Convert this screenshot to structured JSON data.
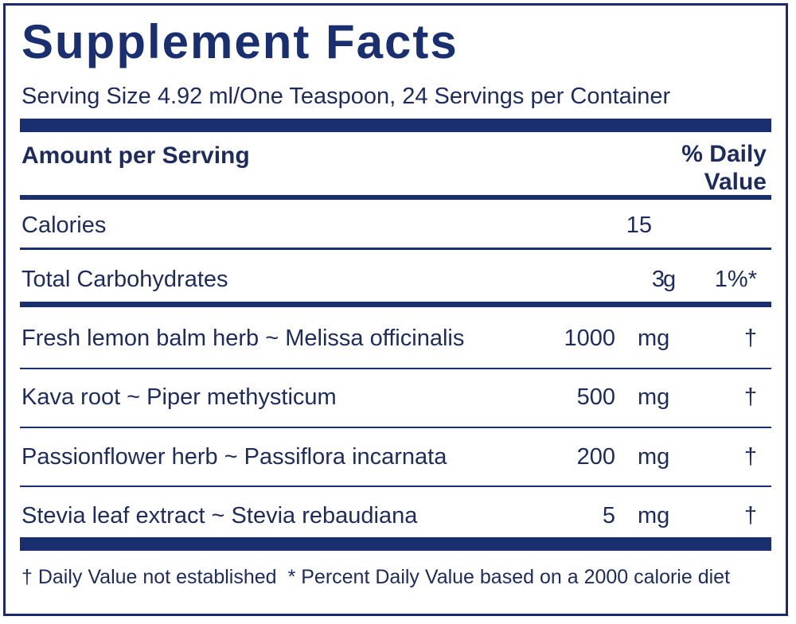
{
  "title": "Supplement Facts",
  "serving": "Serving Size 4.92 ml/One Teaspoon, 24 Servings per Container",
  "header": {
    "amount": "Amount per Serving",
    "daily_value": "% Daily Value"
  },
  "rows": [
    {
      "name": "Calories",
      "amount": "15"
    },
    {
      "name": "Total Carbohydrates",
      "amount": "3",
      "unit": "g",
      "dv": "1%*"
    },
    {
      "name": "Fresh lemon balm herb ~ Melissa officinalis",
      "amount": "1000",
      "unit": "mg",
      "dv": "†"
    },
    {
      "name": "Kava root ~ Piper methysticum",
      "amount": "500",
      "unit": "mg",
      "dv": "†"
    },
    {
      "name": "Passionflower herb ~ Passiflora incarnata",
      "amount": "200",
      "unit": "mg",
      "dv": "†"
    },
    {
      "name": "Stevia leaf extract ~ Stevia rebaudiana",
      "amount": "5",
      "unit": "mg",
      "dv": "†"
    }
  ],
  "footnotes": [
    "† Daily Value not established",
    "* Percent Daily Value based on a 2000 calorie diet"
  ]
}
